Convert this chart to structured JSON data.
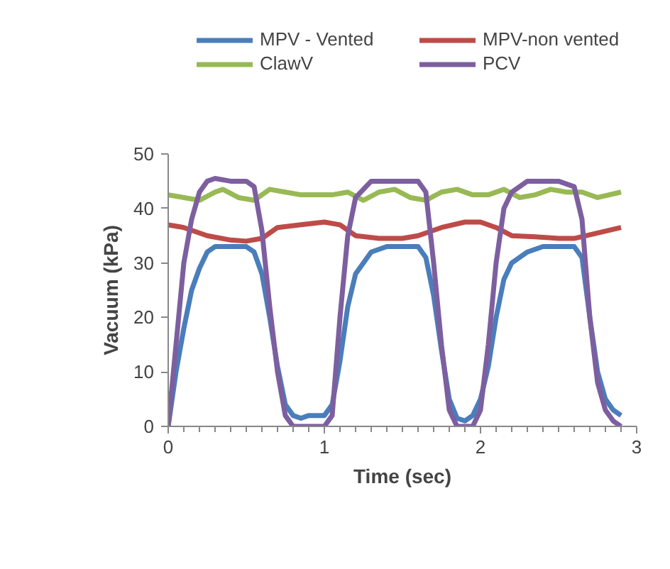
{
  "chart_data": {
    "type": "line",
    "xlabel": "Time (sec)",
    "ylabel": "Vacuum (kPa)",
    "xlim": [
      0,
      3
    ],
    "xticks": [
      0,
      1,
      2,
      3
    ],
    "ylim": [
      0,
      50
    ],
    "yticks": [
      0,
      10,
      20,
      30,
      40,
      50
    ],
    "grid": false,
    "legend": "top",
    "marker": "none",
    "line_style": "solid",
    "series": [
      {
        "name": "MPV - Vented",
        "color": "#4a7ebb",
        "x": [
          0,
          0.05,
          0.1,
          0.15,
          0.2,
          0.25,
          0.3,
          0.4,
          0.5,
          0.55,
          0.6,
          0.65,
          0.7,
          0.75,
          0.8,
          0.85,
          0.9,
          1.0,
          1.05,
          1.1,
          1.15,
          1.2,
          1.3,
          1.4,
          1.5,
          1.6,
          1.65,
          1.7,
          1.75,
          1.8,
          1.85,
          1.9,
          1.95,
          2.0,
          2.05,
          2.1,
          2.15,
          2.2,
          2.3,
          2.4,
          2.5,
          2.6,
          2.65,
          2.7,
          2.75,
          2.8,
          2.85,
          2.9
        ],
        "values": [
          0,
          10,
          18,
          25,
          29,
          32,
          33,
          33,
          33,
          32,
          28,
          20,
          11,
          4,
          2,
          1.5,
          2,
          2,
          4,
          12,
          22,
          28,
          32,
          33,
          33,
          33,
          31,
          24,
          14,
          5,
          1.5,
          1,
          2,
          5,
          11,
          20,
          27,
          30,
          32,
          33,
          33,
          33,
          31,
          20,
          10,
          5,
          3,
          2
        ]
      },
      {
        "name": "MPV-non vented",
        "color": "#be4b48",
        "x": [
          0,
          0.1,
          0.25,
          0.4,
          0.5,
          0.6,
          0.7,
          0.85,
          1.0,
          1.1,
          1.2,
          1.35,
          1.5,
          1.6,
          1.75,
          1.9,
          2.0,
          2.1,
          2.2,
          2.35,
          2.5,
          2.6,
          2.75,
          2.9
        ],
        "values": [
          37,
          36.5,
          35,
          34.2,
          34,
          34.5,
          36.5,
          37,
          37.5,
          37,
          35,
          34.5,
          34.5,
          35,
          36.5,
          37.5,
          37.5,
          36.5,
          35,
          34.8,
          34.5,
          34.5,
          35.5,
          36.5
        ]
      },
      {
        "name": "ClawV",
        "color": "#98b954",
        "x": [
          0,
          0.1,
          0.2,
          0.3,
          0.35,
          0.45,
          0.55,
          0.65,
          0.75,
          0.85,
          0.95,
          1.05,
          1.15,
          1.25,
          1.35,
          1.45,
          1.55,
          1.65,
          1.75,
          1.85,
          1.95,
          2.05,
          2.15,
          2.25,
          2.35,
          2.45,
          2.55,
          2.65,
          2.75,
          2.9
        ],
        "values": [
          42.5,
          42,
          41.5,
          43,
          43.5,
          42,
          41.5,
          43.5,
          43,
          42.5,
          42.5,
          42.5,
          43,
          41.5,
          43,
          43.5,
          42,
          41.5,
          43,
          43.5,
          42.5,
          42.5,
          43.5,
          42,
          42.5,
          43.5,
          43,
          43,
          42,
          43
        ]
      },
      {
        "name": "PCV",
        "color": "#7d5fa0",
        "x": [
          0,
          0.05,
          0.1,
          0.15,
          0.2,
          0.25,
          0.3,
          0.4,
          0.5,
          0.55,
          0.6,
          0.65,
          0.7,
          0.75,
          0.8,
          0.85,
          0.9,
          1.0,
          1.05,
          1.1,
          1.15,
          1.2,
          1.3,
          1.4,
          1.5,
          1.6,
          1.65,
          1.7,
          1.75,
          1.8,
          1.85,
          1.9,
          1.95,
          2.0,
          2.05,
          2.1,
          2.15,
          2.2,
          2.3,
          2.4,
          2.5,
          2.6,
          2.65,
          2.7,
          2.75,
          2.8,
          2.85,
          2.9
        ],
        "values": [
          0,
          15,
          30,
          38,
          43,
          45,
          45.5,
          45,
          45,
          44,
          36,
          22,
          10,
          2,
          0,
          0,
          0,
          0,
          2,
          20,
          35,
          42,
          45,
          45,
          45,
          45,
          43,
          30,
          15,
          3,
          0,
          0,
          0,
          3,
          15,
          30,
          40,
          43,
          45,
          45,
          45,
          44,
          38,
          20,
          8,
          3,
          1,
          0
        ]
      }
    ]
  }
}
